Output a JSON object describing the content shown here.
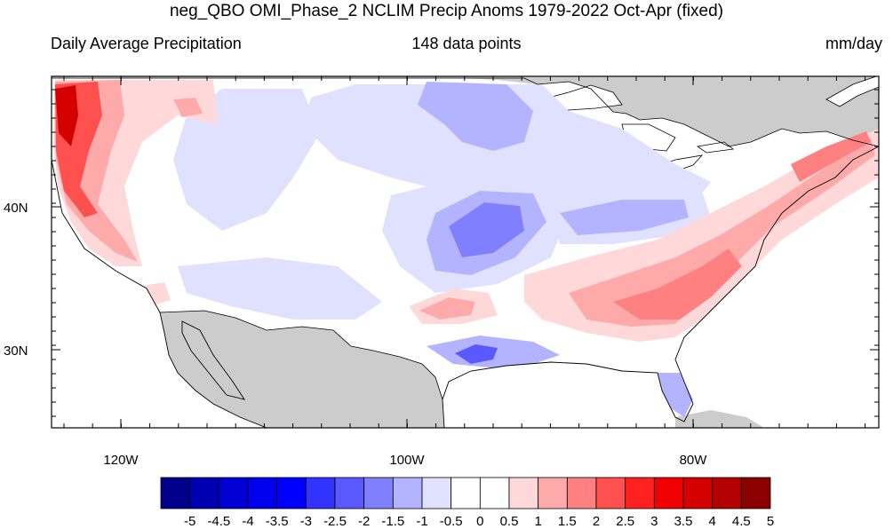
{
  "title": "neg_QBO OMI_Phase_2 NCLIM Precip Anoms 1979-2022 Oct-Apr (fixed)",
  "left_string": "Daily Average Precipitation",
  "center_string": "148 data points",
  "right_string": "mm/day",
  "map": {
    "lat_labels": [
      "40N",
      "30N"
    ],
    "lon_labels": [
      "120W",
      "100W",
      "80W"
    ],
    "land_mask_color": "#cccccc",
    "ocean_color": "#ffffff"
  },
  "colorbar": {
    "labels": [
      "-5",
      "-4.5",
      "-4",
      "-3.5",
      "-3",
      "-2.5",
      "-2",
      "-1.5",
      "-1",
      "-0.5",
      "0",
      "0.5",
      "1",
      "1.5",
      "2",
      "2.5",
      "3",
      "3.5",
      "4",
      "4.5",
      "5"
    ],
    "colors": [
      "#00008b",
      "#0000b3",
      "#0000d4",
      "#0000ee",
      "#0000ff",
      "#3333ff",
      "#5959ff",
      "#8080ff",
      "#b3b3ff",
      "#e0e0ff",
      "#ffffff",
      "#ffffff",
      "#ffd9d9",
      "#ffaaaa",
      "#ff8080",
      "#ff5050",
      "#ff2020",
      "#f00000",
      "#d40000",
      "#b30000",
      "#8b0000"
    ]
  }
}
